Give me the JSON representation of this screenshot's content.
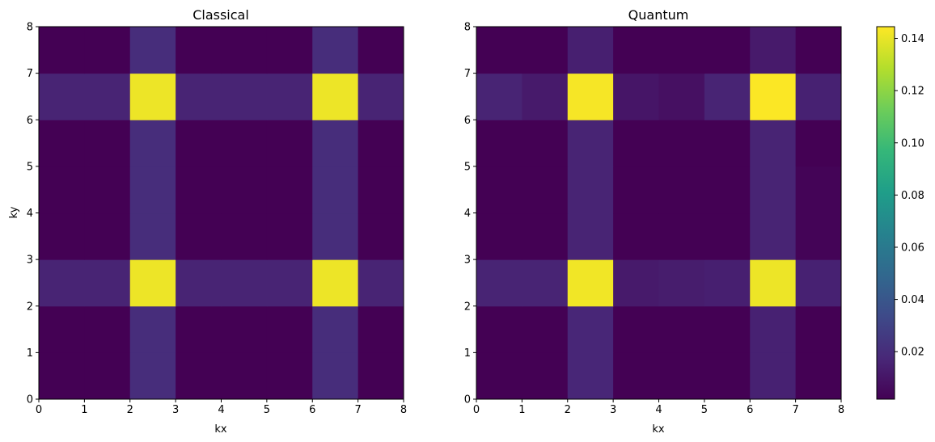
{
  "figure": {
    "colormap": "viridis",
    "colorbar": {
      "range": [
        0.0018,
        0.1445
      ],
      "ticks": [
        0.02,
        0.04,
        0.06,
        0.08,
        0.1,
        0.12,
        0.14
      ],
      "tick_labels": [
        "0.02",
        "0.04",
        "0.06",
        "0.08",
        "0.10",
        "0.12",
        "0.14"
      ]
    }
  },
  "chart_data": [
    {
      "type": "heatmap",
      "title": "Classical",
      "xlabel": "kx",
      "ylabel": "ky",
      "xlim": [
        0,
        8
      ],
      "ylim": [
        0,
        8
      ],
      "x_ticks": [
        "0",
        "1",
        "2",
        "3",
        "4",
        "5",
        "6",
        "7",
        "8"
      ],
      "y_ticks": [
        "0",
        "1",
        "2",
        "3",
        "4",
        "5",
        "6",
        "7",
        "8"
      ],
      "values_rows_ky0_to_ky7": [
        [
          0.002,
          0.002,
          0.02,
          0.002,
          0.002,
          0.002,
          0.02,
          0.002
        ],
        [
          0.002,
          0.002,
          0.02,
          0.002,
          0.002,
          0.002,
          0.02,
          0.002
        ],
        [
          0.016,
          0.016,
          0.141,
          0.016,
          0.016,
          0.016,
          0.141,
          0.016
        ],
        [
          0.002,
          0.002,
          0.02,
          0.002,
          0.002,
          0.002,
          0.02,
          0.002
        ],
        [
          0.002,
          0.002,
          0.02,
          0.002,
          0.002,
          0.002,
          0.02,
          0.002
        ],
        [
          0.002,
          0.002,
          0.02,
          0.002,
          0.002,
          0.002,
          0.02,
          0.002
        ],
        [
          0.016,
          0.016,
          0.141,
          0.016,
          0.016,
          0.016,
          0.141,
          0.016
        ],
        [
          0.002,
          0.002,
          0.02,
          0.002,
          0.002,
          0.002,
          0.02,
          0.002
        ]
      ]
    },
    {
      "type": "heatmap",
      "title": "Quantum",
      "xlabel": "kx",
      "ylabel": "",
      "xlim": [
        0,
        8
      ],
      "ylim": [
        0,
        8
      ],
      "x_ticks": [
        "0",
        "1",
        "2",
        "3",
        "4",
        "5",
        "6",
        "7",
        "8"
      ],
      "y_ticks": [
        "0",
        "1",
        "2",
        "3",
        "4",
        "5",
        "6",
        "7",
        "8"
      ],
      "values_rows_ky0_to_ky7": [
        [
          0.002,
          0.002,
          0.017,
          0.002,
          0.002,
          0.002,
          0.015,
          0.002
        ],
        [
          0.002,
          0.002,
          0.017,
          0.002,
          0.002,
          0.002,
          0.015,
          0.002
        ],
        [
          0.016,
          0.016,
          0.142,
          0.012,
          0.013,
          0.014,
          0.141,
          0.015
        ],
        [
          0.002,
          0.002,
          0.016,
          0.002,
          0.001,
          0.002,
          0.016,
          0.003
        ],
        [
          0.002,
          0.002,
          0.016,
          0.002,
          0.001,
          0.002,
          0.016,
          0.003
        ],
        [
          0.002,
          0.002,
          0.016,
          0.002,
          0.002,
          0.002,
          0.016,
          0.002
        ],
        [
          0.016,
          0.012,
          0.143,
          0.01,
          0.008,
          0.016,
          0.144,
          0.015
        ],
        [
          0.002,
          0.002,
          0.014,
          0.002,
          0.002,
          0.002,
          0.012,
          0.002
        ]
      ]
    }
  ]
}
